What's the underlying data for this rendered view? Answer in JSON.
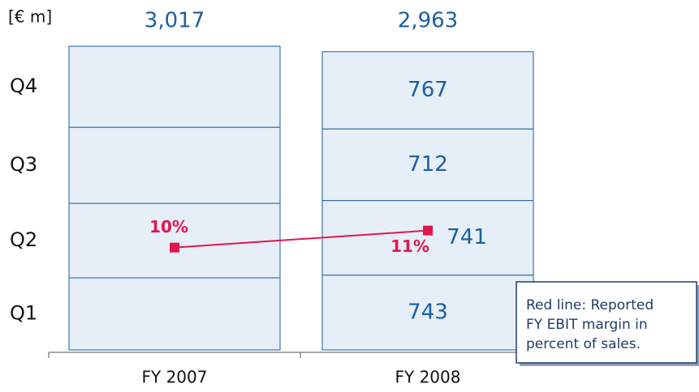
{
  "chart_data": {
    "type": "stacked_bar",
    "unit_label": "[€ m]",
    "categories": [
      "FY 2007",
      "FY 2008"
    ],
    "series": [
      {
        "name": "Q1",
        "color": "#e6eef7",
        "values": [
          716,
          743
        ]
      },
      {
        "name": "Q2",
        "color": "#e6eef7",
        "values": [
          740,
          741
        ]
      },
      {
        "name": "Q3",
        "color": "#e6eef7",
        "values": [
          756,
          712
        ]
      },
      {
        "name": "Q4",
        "color": "#e6eef7",
        "values": [
          805,
          767
        ]
      }
    ],
    "show_segment_labels": [
      false,
      true
    ],
    "totals": [
      {
        "value": 3017,
        "label": "3,017"
      },
      {
        "value": 2963,
        "label": "2,963"
      }
    ],
    "line": {
      "name": "Reported FY EBIT margin",
      "color": "#e0174f",
      "axis": "y2",
      "values": [
        10,
        11
      ],
      "value_labels": [
        "10%",
        "11%"
      ]
    },
    "ylim": [
      0,
      3050
    ],
    "y2lim": [
      4,
      22
    ],
    "annotation": [
      "Red line: Reported",
      "FY EBIT margin in",
      "percent of sales."
    ]
  }
}
